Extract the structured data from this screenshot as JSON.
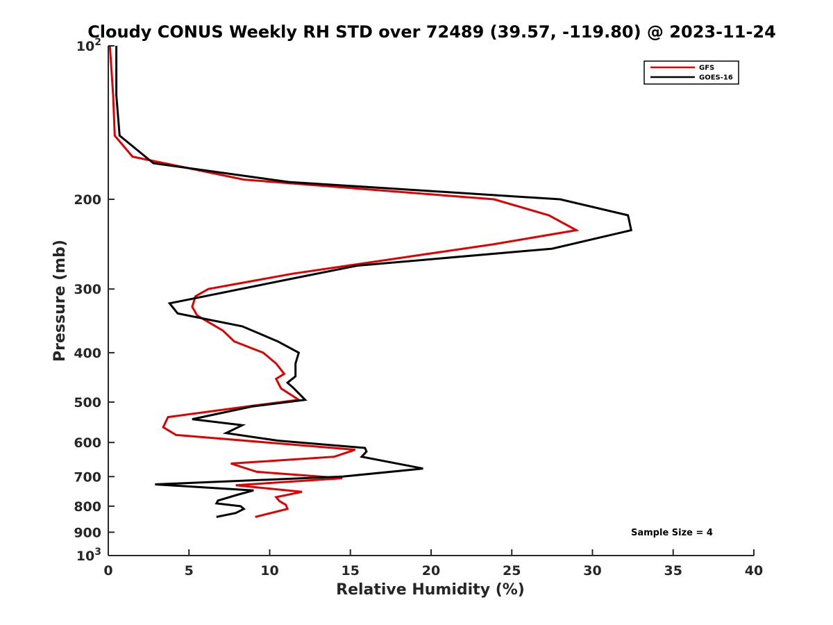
{
  "chart_data": {
    "type": "line",
    "title": "Cloudy CONUS Weekly RH STD over 72489 (39.57, -119.80) @ 2023-11-24",
    "xlabel": "Relative Humidity (%)",
    "ylabel": "Pressure (mb)",
    "xlim": [
      0,
      40
    ],
    "ylim": [
      100,
      1000
    ],
    "y_scale": "log",
    "y_reversed": true,
    "x_ticks": [
      "0",
      "5",
      "10",
      "15",
      "20",
      "25",
      "30",
      "35",
      "40"
    ],
    "y_ticks": [
      {
        "value": 100,
        "label": "10",
        "sup": "2"
      },
      {
        "value": 200,
        "label": "200",
        "sup": ""
      },
      {
        "value": 300,
        "label": "300",
        "sup": ""
      },
      {
        "value": 400,
        "label": "400",
        "sup": ""
      },
      {
        "value": 500,
        "label": "500",
        "sup": ""
      },
      {
        "value": 600,
        "label": "600",
        "sup": ""
      },
      {
        "value": 700,
        "label": "700",
        "sup": ""
      },
      {
        "value": 800,
        "label": "800",
        "sup": ""
      },
      {
        "value": 900,
        "label": "900",
        "sup": ""
      },
      {
        "value": 1000,
        "label": "10",
        "sup": "3"
      }
    ],
    "grid": false,
    "legend_position": "top-right",
    "annotation": "Sample Size = 4",
    "series": [
      {
        "name": "GFS",
        "color": "#e00000",
        "points": [
          [
            0.1,
            100
          ],
          [
            0.3,
            125
          ],
          [
            0.4,
            150
          ],
          [
            1.5,
            165
          ],
          [
            8.4,
            183
          ],
          [
            23.9,
            200
          ],
          [
            27.3,
            215
          ],
          [
            29.0,
            230
          ],
          [
            23.9,
            245
          ],
          [
            11.4,
            280
          ],
          [
            6.2,
            300
          ],
          [
            5.4,
            310
          ],
          [
            5.2,
            325
          ],
          [
            5.5,
            338
          ],
          [
            7.1,
            362
          ],
          [
            7.8,
            380
          ],
          [
            9.6,
            400
          ],
          [
            10.4,
            420
          ],
          [
            10.9,
            440
          ],
          [
            10.4,
            450
          ],
          [
            10.7,
            470
          ],
          [
            11.8,
            495
          ],
          [
            9.0,
            508
          ],
          [
            3.7,
            535
          ],
          [
            3.4,
            560
          ],
          [
            4.2,
            580
          ],
          [
            15.3,
            620
          ],
          [
            14.0,
            640
          ],
          [
            7.6,
            660
          ],
          [
            9.2,
            685
          ],
          [
            14.5,
            705
          ],
          [
            7.9,
            728
          ],
          [
            12.0,
            750
          ],
          [
            10.4,
            768
          ],
          [
            10.6,
            782
          ],
          [
            11.0,
            795
          ],
          [
            11.1,
            810
          ],
          [
            9.1,
            840
          ]
        ]
      },
      {
        "name": "GOES-16",
        "color": "#000000",
        "points": [
          [
            0.5,
            100
          ],
          [
            0.5,
            125
          ],
          [
            0.7,
            150
          ],
          [
            2.8,
            170
          ],
          [
            11.2,
            185
          ],
          [
            28.0,
            200
          ],
          [
            32.2,
            215
          ],
          [
            32.4,
            230
          ],
          [
            27.5,
            250
          ],
          [
            15.4,
            270
          ],
          [
            11.2,
            287
          ],
          [
            3.8,
            320
          ],
          [
            4.3,
            335
          ],
          [
            8.3,
            355
          ],
          [
            10.5,
            380
          ],
          [
            11.8,
            400
          ],
          [
            11.6,
            420
          ],
          [
            11.6,
            445
          ],
          [
            11.1,
            458
          ],
          [
            11.5,
            470
          ],
          [
            12.2,
            495
          ],
          [
            8.9,
            510
          ],
          [
            5.2,
            540
          ],
          [
            8.3,
            555
          ],
          [
            7.3,
            575
          ],
          [
            10.5,
            595
          ],
          [
            15.9,
            615
          ],
          [
            16.0,
            625
          ],
          [
            15.7,
            640
          ],
          [
            19.5,
            675
          ],
          [
            14.5,
            700
          ],
          [
            2.9,
            725
          ],
          [
            9.0,
            745
          ],
          [
            8.0,
            760
          ],
          [
            6.8,
            780
          ],
          [
            6.7,
            790
          ],
          [
            8.2,
            800
          ],
          [
            8.4,
            810
          ],
          [
            7.9,
            825
          ],
          [
            6.7,
            840
          ]
        ]
      }
    ]
  }
}
